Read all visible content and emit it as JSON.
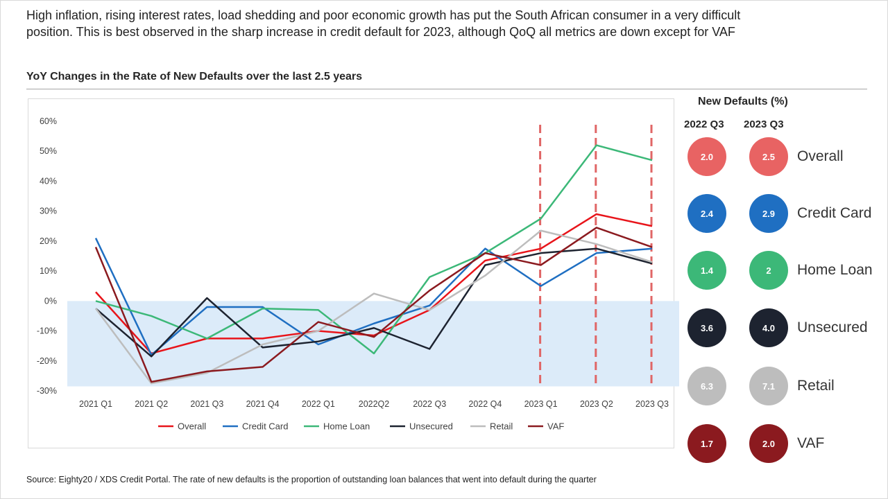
{
  "intro_text": "High inflation, rising interest rates, load shedding and poor economic growth has put the South African consumer in a very difficult position. This is best observed in the sharp increase in credit default for 2023, although QoQ all metrics are down except for VAF",
  "chart_title": "YoY Changes in the Rate of New Defaults over the last 2.5 years",
  "chart_data": {
    "type": "line",
    "categories": [
      "2021 Q1",
      "2021 Q2",
      "2021 Q3",
      "2021 Q4",
      "2022 Q1",
      "2022Q2",
      "2022 Q3",
      "2022 Q4",
      "2023 Q1",
      "2023 Q2",
      "2023 Q3"
    ],
    "y_tick_labels": [
      "60%",
      "50%",
      "40%",
      "30%",
      "20%",
      "10%",
      "0%",
      "-10%",
      "-20%",
      "-30%"
    ],
    "ylim": [
      -30,
      60
    ],
    "y_unit": "%",
    "negative_region_shaded": true,
    "highlight_categories": [
      "2023 Q1",
      "2023 Q2",
      "2023 Q3"
    ],
    "legend_position": "bottom",
    "series": [
      {
        "name": "Overall",
        "color": "#e8141a",
        "values": [
          3,
          -17.5,
          -12.5,
          -12.5,
          -10,
          -11.5,
          -3,
          13.5,
          17.5,
          29,
          25
        ]
      },
      {
        "name": "Credit Card",
        "color": "#1f6fc2",
        "values": [
          21,
          -18,
          -2,
          -2,
          -14.5,
          -7.5,
          -1.5,
          17.5,
          5,
          16,
          17.5
        ]
      },
      {
        "name": "Home Loan",
        "color": "#3cb878",
        "values": [
          0,
          -5,
          -12.5,
          -2.5,
          -3,
          -17.5,
          8,
          16,
          27.5,
          52,
          47
        ]
      },
      {
        "name": "Unsecured",
        "color": "#1d2330",
        "values": [
          -2.5,
          -18.5,
          1,
          -15.5,
          -13.5,
          -9,
          -16,
          12,
          16,
          17.5,
          12.5
        ]
      },
      {
        "name": "Retail",
        "color": "#bdbdbd",
        "values": [
          -2.5,
          -27.5,
          -24,
          -14.5,
          -10,
          2.5,
          -3,
          8.5,
          23.5,
          19,
          13
        ]
      },
      {
        "name": "VAF",
        "color": "#8b1a1f",
        "values": [
          18,
          -27,
          -23.5,
          -22,
          -7,
          -12,
          3.5,
          16,
          12,
          24.5,
          18
        ]
      }
    ]
  },
  "panel": {
    "title": "New Defaults  (%)",
    "col_2022": "2022 Q3",
    "col_2023": "2023 Q3",
    "metrics": [
      {
        "label": "Overall",
        "v2022": "2.0",
        "v2023": "2.5",
        "color": "#e86363"
      },
      {
        "label": "Credit Card",
        "v2022": "2.4",
        "v2023": "2.9",
        "color": "#1f6fc2"
      },
      {
        "label": "Home Loan",
        "v2022": "1.4",
        "v2023": "2",
        "color": "#3cb878"
      },
      {
        "label": "Unsecured",
        "v2022": "3.6",
        "v2023": "4.0",
        "color": "#1d2330"
      },
      {
        "label": "Retail",
        "v2022": "6.3",
        "v2023": "7.1",
        "color": "#bdbdbd"
      },
      {
        "label": "VAF",
        "v2022": "1.7",
        "v2023": "2.0",
        "color": "#8b1a1f"
      }
    ]
  },
  "source_text": "Source:  Eighty20 / XDS Credit Portal. The rate of new defaults is the proportion  of outstanding loan balances that went into default during the quarter"
}
